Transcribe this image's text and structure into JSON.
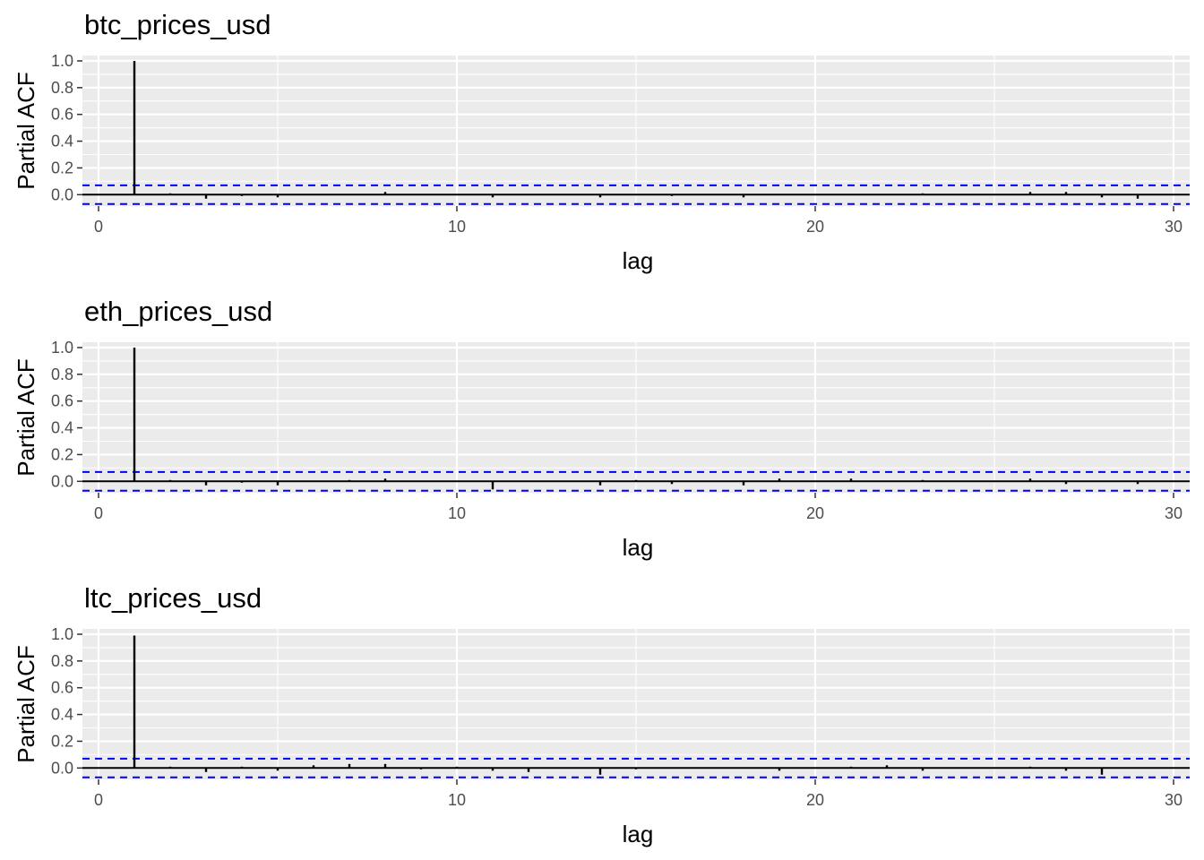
{
  "chart_data": [
    {
      "type": "bar",
      "title": "btc_prices_usd",
      "xlabel": "lag",
      "ylabel": "Partial ACF",
      "xlim": [
        0,
        30
      ],
      "ylim": [
        -0.07,
        1.0
      ],
      "x_ticks": [
        "0",
        "10",
        "20",
        "30"
      ],
      "y_ticks": [
        "0.0",
        "0.2",
        "0.4",
        "0.6",
        "0.8",
        "1.0"
      ],
      "grid": true,
      "confidence_bound": 0.07,
      "lags": [
        1,
        2,
        3,
        4,
        5,
        6,
        7,
        8,
        9,
        10,
        11,
        12,
        13,
        14,
        15,
        16,
        17,
        18,
        19,
        20,
        21,
        22,
        23,
        24,
        25,
        26,
        27,
        28,
        29,
        30
      ],
      "values": [
        1.0,
        0.01,
        -0.03,
        -0.01,
        -0.02,
        0.0,
        0.0,
        0.02,
        0.0,
        0.0,
        -0.02,
        0.0,
        0.0,
        -0.02,
        0.0,
        -0.01,
        0.0,
        -0.02,
        0.0,
        0.0,
        0.0,
        0.0,
        0.01,
        0.0,
        0.0,
        0.02,
        0.02,
        -0.02,
        -0.03,
        0.0
      ]
    },
    {
      "type": "bar",
      "title": "eth_prices_usd",
      "xlabel": "lag",
      "ylabel": "Partial ACF",
      "xlim": [
        0,
        30
      ],
      "ylim": [
        -0.07,
        1.0
      ],
      "x_ticks": [
        "0",
        "10",
        "20",
        "30"
      ],
      "y_ticks": [
        "0.0",
        "0.2",
        "0.4",
        "0.6",
        "0.8",
        "1.0"
      ],
      "grid": true,
      "confidence_bound": 0.07,
      "lags": [
        1,
        2,
        3,
        4,
        5,
        6,
        7,
        8,
        9,
        10,
        11,
        12,
        13,
        14,
        15,
        16,
        17,
        18,
        19,
        20,
        21,
        22,
        23,
        24,
        25,
        26,
        27,
        28,
        29,
        30
      ],
      "values": [
        1.0,
        0.01,
        -0.03,
        -0.01,
        -0.03,
        0.0,
        0.01,
        0.02,
        0.0,
        0.0,
        -0.06,
        0.0,
        0.0,
        -0.03,
        0.01,
        -0.02,
        0.0,
        -0.03,
        0.02,
        0.0,
        0.02,
        0.0,
        0.01,
        0.0,
        0.0,
        0.02,
        -0.02,
        0.0,
        -0.02,
        0.0
      ]
    },
    {
      "type": "bar",
      "title": "ltc_prices_usd",
      "xlabel": "lag",
      "ylabel": "Partial ACF",
      "xlim": [
        0,
        30
      ],
      "ylim": [
        -0.07,
        1.0
      ],
      "x_ticks": [
        "0",
        "10",
        "20",
        "30"
      ],
      "y_ticks": [
        "0.0",
        "0.2",
        "0.4",
        "0.6",
        "0.8",
        "1.0"
      ],
      "grid": true,
      "confidence_bound": 0.07,
      "lags": [
        1,
        2,
        3,
        4,
        5,
        6,
        7,
        8,
        9,
        10,
        11,
        12,
        13,
        14,
        15,
        16,
        17,
        18,
        19,
        20,
        21,
        22,
        23,
        24,
        25,
        26,
        27,
        28,
        29,
        30
      ],
      "values": [
        0.99,
        0.01,
        -0.03,
        0.01,
        -0.02,
        0.02,
        0.03,
        0.03,
        -0.01,
        0.01,
        -0.02,
        -0.03,
        0.0,
        -0.05,
        -0.01,
        0.0,
        0.0,
        0.0,
        -0.02,
        0.0,
        0.01,
        0.02,
        -0.02,
        0.0,
        0.0,
        0.01,
        -0.02,
        -0.05,
        0.0,
        0.0
      ]
    }
  ],
  "colors": {
    "panel_background": "#ebebeb",
    "grid_line": "#ffffff",
    "bar": "#000000",
    "confidence_line": "#0000ff",
    "tick_text": "#4d4d4d"
  }
}
